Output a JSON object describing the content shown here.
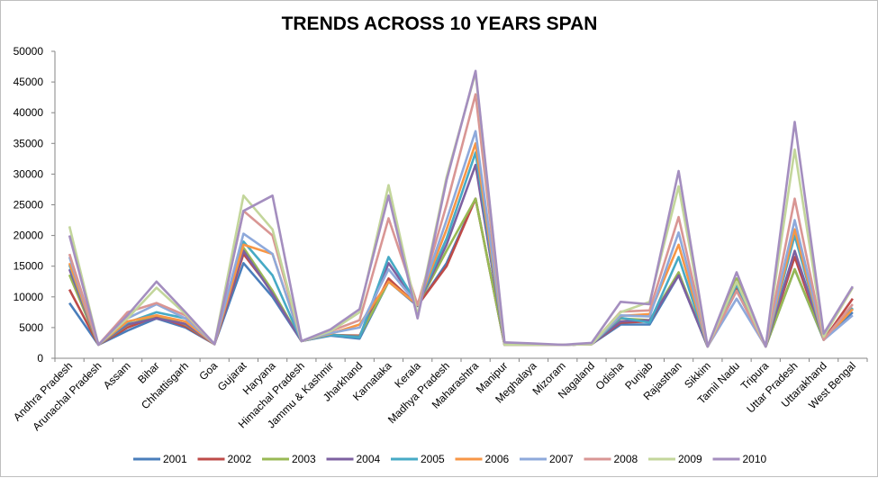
{
  "chart_data": {
    "type": "line",
    "title": "TRENDS ACROSS 10 YEARS SPAN",
    "xlabel": "",
    "ylabel": "",
    "ylim": [
      0,
      50000
    ],
    "yticks": [
      0,
      5000,
      10000,
      15000,
      20000,
      25000,
      30000,
      35000,
      40000,
      45000,
      50000
    ],
    "grid": false,
    "legend_position": "bottom",
    "categories": [
      "Andhra Pradesh",
      "Arunachal Pradesh",
      "Assam",
      "Bihar",
      "Chhattisgarh",
      "Goa",
      "Gujarat",
      "Haryana",
      "Himachal Pradesh",
      "Jammu & Kashmir",
      "Jharkhand",
      "Karnataka",
      "Kerala",
      "Madhya Pradesh",
      "Maharashtra",
      "Manipur",
      "Meghalaya",
      "Mizoram",
      "Nagaland",
      "Odisha",
      "Punjab",
      "Rajasthan",
      "Sikkim",
      "Tamil Nadu",
      "Tripura",
      "Uttar Pradesh",
      "Uttarakhand",
      "West Bengal"
    ],
    "series": [
      {
        "name": "2001",
        "color": "#4a7ebb",
        "values": [
          9000,
          2200,
          4500,
          6500,
          5000,
          2300,
          15500,
          10000,
          2800,
          3700,
          3200,
          12500,
          8500,
          15500,
          26000,
          2200,
          2200,
          2200,
          2300,
          5500,
          5500,
          13500,
          1900,
          11000,
          1900,
          14500,
          3000,
          7500
        ]
      },
      {
        "name": "2002",
        "color": "#be4b48",
        "values": [
          11200,
          2200,
          5000,
          6800,
          5200,
          2300,
          17000,
          10800,
          2800,
          3800,
          3700,
          13000,
          8600,
          15000,
          26000,
          2200,
          2200,
          2200,
          2300,
          5800,
          6000,
          13800,
          1900,
          11400,
          1900,
          16500,
          3000,
          9700
        ]
      },
      {
        "name": "2003",
        "color": "#98b954",
        "values": [
          13600,
          2200,
          5400,
          7000,
          5500,
          2300,
          18000,
          11000,
          2800,
          3800,
          3600,
          12500,
          8700,
          17500,
          26000,
          2200,
          2200,
          2200,
          2300,
          6500,
          6200,
          14000,
          1900,
          13000,
          1900,
          14500,
          3100,
          8000
        ]
      },
      {
        "name": "2004",
        "color": "#7d60a0",
        "values": [
          14500,
          2200,
          5500,
          6500,
          5600,
          2300,
          17500,
          10500,
          2800,
          3800,
          3500,
          15500,
          8700,
          18500,
          31500,
          2200,
          2200,
          2200,
          2300,
          6000,
          6200,
          13500,
          1900,
          12500,
          1900,
          17500,
          3100,
          8200
        ]
      },
      {
        "name": "2005",
        "color": "#46aac5",
        "values": [
          15200,
          2200,
          5800,
          7500,
          6500,
          2300,
          19000,
          13500,
          2800,
          3800,
          3400,
          16500,
          8700,
          19500,
          33500,
          2200,
          2200,
          2200,
          2300,
          6600,
          5800,
          16500,
          1900,
          12000,
          1900,
          20000,
          3000,
          8200
        ]
      },
      {
        "name": "2006",
        "color": "#f79646",
        "values": [
          15500,
          2200,
          6000,
          7000,
          6000,
          2300,
          18500,
          17000,
          2800,
          4000,
          5500,
          12500,
          8700,
          21000,
          35000,
          2200,
          2200,
          2200,
          2300,
          6900,
          7200,
          18500,
          1900,
          12500,
          1900,
          21000,
          3000,
          8000
        ]
      },
      {
        "name": "2007",
        "color": "#8ea9db",
        "values": [
          16500,
          2200,
          6500,
          8800,
          6500,
          2300,
          20300,
          17000,
          2800,
          4100,
          5000,
          14500,
          8700,
          22500,
          37000,
          2200,
          2200,
          2200,
          2300,
          7000,
          6800,
          20500,
          1900,
          9700,
          1900,
          22500,
          3000,
          7000
        ]
      },
      {
        "name": "2008",
        "color": "#d99694",
        "values": [
          17000,
          2200,
          7500,
          9000,
          7000,
          2300,
          24000,
          20000,
          2800,
          4400,
          6200,
          22800,
          8700,
          25000,
          43000,
          2200,
          2200,
          2200,
          2300,
          7600,
          7800,
          23000,
          1900,
          11000,
          1900,
          26000,
          3000,
          8800
        ]
      },
      {
        "name": "2009",
        "color": "#c3d69b",
        "values": [
          21500,
          2200,
          6500,
          11500,
          7200,
          2300,
          26500,
          21000,
          2800,
          4400,
          7500,
          28200,
          7000,
          29500,
          46500,
          2200,
          2200,
          2200,
          2300,
          7500,
          9200,
          28000,
          1900,
          12500,
          1900,
          34000,
          3500,
          11500
        ]
      },
      {
        "name": "2010",
        "color": "#a48ebf",
        "values": [
          20000,
          2200,
          7000,
          12500,
          7500,
          2300,
          24000,
          26500,
          2800,
          4700,
          8000,
          26500,
          6500,
          29000,
          46800,
          2600,
          2400,
          2200,
          2500,
          9200,
          8800,
          30500,
          1900,
          14000,
          1900,
          38500,
          4000,
          11700
        ]
      }
    ]
  }
}
